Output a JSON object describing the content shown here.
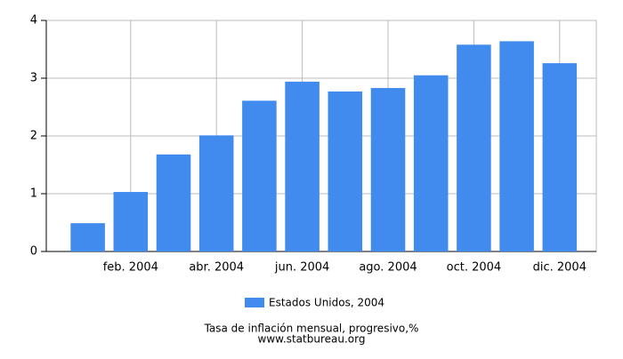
{
  "chart_data": {
    "type": "bar",
    "title": "Tasa de inflación mensual, progresivo,%",
    "source": "www.statbureau.org",
    "categories": [
      null,
      "feb. 2004",
      null,
      "abr. 2004",
      null,
      "jun. 2004",
      null,
      "ago. 2004",
      null,
      "oct. 2004",
      null,
      "dic. 2004"
    ],
    "series": [
      {
        "name": "Estados Unidos, 2004",
        "color": "#428bee",
        "values": [
          0.49,
          1.03,
          1.68,
          2.01,
          2.61,
          2.94,
          2.77,
          2.83,
          3.05,
          3.58,
          3.64,
          3.26
        ]
      }
    ],
    "ylim": [
      0,
      4
    ],
    "yticks": [
      0,
      1,
      2,
      3,
      4
    ],
    "grid": true,
    "legend": "bottom"
  }
}
